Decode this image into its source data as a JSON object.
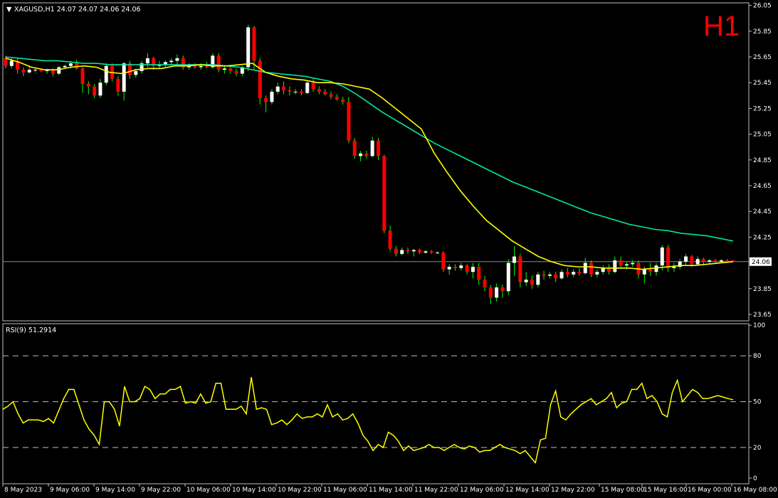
{
  "header": {
    "symbol_line": "XAGUSD,H1  24.07 24.07 24.06 24.06",
    "timeframe_label": "H1",
    "timeframe_color": "#ff0000"
  },
  "chart_data": [
    {
      "type": "candlestick",
      "symbol": "XAGUSD",
      "timeframe": "H1",
      "ohlc_last": {
        "open": 24.07,
        "high": 24.07,
        "low": 24.06,
        "close": 24.06
      },
      "current_price": 24.06,
      "ylim": [
        23.6,
        26.07
      ],
      "yticks": [
        26.05,
        25.85,
        25.65,
        25.45,
        25.25,
        25.05,
        24.85,
        24.65,
        24.45,
        24.25,
        24.06,
        23.85,
        23.65
      ],
      "xtick_labels": [
        "8 May 2023",
        "9 May 06:00",
        "9 May 14:00",
        "9 May 22:00",
        "10 May 06:00",
        "10 May 14:00",
        "10 May 22:00",
        "11 May 06:00",
        "11 May 14:00",
        "11 May 22:00",
        "12 May 06:00",
        "12 May 14:00",
        "12 May 22:00",
        "15 May 08:00",
        "15 May 16:00",
        "16 May 00:00",
        "16 May 08:00"
      ],
      "bull_color": "#ffffff",
      "bear_color": "#ff0000",
      "wick_color": "#00ff00",
      "candles": [
        [
          25.64,
          25.66,
          25.56,
          25.58
        ],
        [
          25.58,
          25.64,
          25.56,
          25.62
        ],
        [
          25.62,
          25.64,
          25.52,
          25.55
        ],
        [
          25.55,
          25.57,
          25.5,
          25.53
        ],
        [
          25.53,
          25.58,
          25.52,
          25.55
        ],
        [
          25.55,
          25.56,
          25.53,
          25.55
        ],
        [
          25.55,
          25.56,
          25.53,
          25.54
        ],
        [
          25.54,
          25.56,
          25.52,
          25.55
        ],
        [
          25.55,
          25.56,
          25.5,
          25.52
        ],
        [
          25.52,
          25.58,
          25.51,
          25.57
        ],
        [
          25.57,
          25.59,
          25.56,
          25.58
        ],
        [
          25.58,
          25.62,
          25.56,
          25.6
        ],
        [
          25.6,
          25.63,
          25.55,
          25.56
        ],
        [
          25.56,
          25.57,
          25.37,
          25.44
        ],
        [
          25.44,
          25.46,
          25.36,
          25.42
        ],
        [
          25.42,
          25.44,
          25.33,
          25.35
        ],
        [
          25.35,
          25.48,
          25.33,
          25.45
        ],
        [
          25.45,
          25.6,
          25.43,
          25.58
        ],
        [
          25.58,
          25.6,
          25.46,
          25.48
        ],
        [
          25.48,
          25.5,
          25.35,
          25.38
        ],
        [
          25.38,
          25.61,
          25.31,
          25.6
        ],
        [
          25.6,
          25.62,
          25.48,
          25.51
        ],
        [
          25.51,
          25.56,
          25.49,
          25.54
        ],
        [
          25.54,
          25.62,
          25.52,
          25.6
        ],
        [
          25.6,
          25.68,
          25.57,
          25.64
        ],
        [
          25.64,
          25.65,
          25.55,
          25.58
        ],
        [
          25.58,
          25.62,
          25.56,
          25.59
        ],
        [
          25.59,
          25.62,
          25.57,
          25.61
        ],
        [
          25.61,
          25.64,
          25.58,
          25.62
        ],
        [
          25.62,
          25.67,
          25.58,
          25.64
        ],
        [
          25.64,
          25.66,
          25.55,
          25.57
        ],
        [
          25.57,
          25.6,
          25.55,
          25.58
        ],
        [
          25.58,
          25.6,
          25.56,
          25.57
        ],
        [
          25.57,
          25.6,
          25.55,
          25.58
        ],
        [
          25.58,
          25.61,
          25.56,
          25.57
        ],
        [
          25.57,
          25.68,
          25.56,
          25.66
        ],
        [
          25.66,
          25.68,
          25.53,
          25.55
        ],
        [
          25.55,
          25.58,
          25.52,
          25.56
        ],
        [
          25.56,
          25.58,
          25.52,
          25.54
        ],
        [
          25.54,
          25.56,
          25.5,
          25.52
        ],
        [
          25.52,
          25.58,
          25.5,
          25.57
        ],
        [
          25.57,
          25.9,
          25.54,
          25.88
        ],
        [
          25.88,
          25.89,
          25.55,
          25.62
        ],
        [
          25.62,
          25.64,
          25.28,
          25.33
        ],
        [
          25.33,
          25.35,
          25.22,
          25.3
        ],
        [
          25.3,
          25.4,
          25.28,
          25.38
        ],
        [
          25.38,
          25.45,
          25.36,
          25.42
        ],
        [
          25.42,
          25.46,
          25.36,
          25.39
        ],
        [
          25.39,
          25.42,
          25.35,
          25.38
        ],
        [
          25.38,
          25.4,
          25.36,
          25.38
        ],
        [
          25.38,
          25.4,
          25.35,
          25.37
        ],
        [
          25.37,
          25.47,
          25.36,
          25.45
        ],
        [
          25.45,
          25.48,
          25.38,
          25.4
        ],
        [
          25.4,
          25.42,
          25.36,
          25.38
        ],
        [
          25.38,
          25.4,
          25.35,
          25.36
        ],
        [
          25.36,
          25.38,
          25.32,
          25.34
        ],
        [
          25.34,
          25.36,
          25.31,
          25.32
        ],
        [
          25.32,
          25.34,
          25.28,
          25.3
        ],
        [
          25.3,
          25.34,
          24.98,
          25.0
        ],
        [
          25.0,
          25.02,
          24.86,
          24.88
        ],
        [
          24.88,
          24.92,
          24.84,
          24.9
        ],
        [
          24.9,
          24.92,
          24.86,
          24.88
        ],
        [
          24.88,
          25.03,
          24.87,
          25.0
        ],
        [
          25.0,
          25.02,
          24.85,
          24.88
        ],
        [
          24.88,
          24.89,
          24.28,
          24.3
        ],
        [
          24.3,
          24.34,
          24.14,
          24.16
        ],
        [
          24.16,
          24.18,
          24.1,
          24.12
        ],
        [
          24.12,
          24.17,
          24.11,
          24.15
        ],
        [
          24.15,
          24.17,
          24.12,
          24.14
        ],
        [
          24.14,
          24.16,
          24.1,
          24.15
        ],
        [
          24.15,
          24.16,
          24.12,
          24.13
        ],
        [
          24.13,
          24.15,
          24.12,
          24.14
        ],
        [
          24.14,
          24.15,
          24.12,
          24.13
        ],
        [
          24.13,
          24.14,
          24.12,
          24.13
        ],
        [
          24.13,
          24.14,
          23.98,
          24.0
        ],
        [
          24.0,
          24.04,
          23.96,
          24.02
        ],
        [
          24.02,
          24.04,
          23.99,
          24.01
        ],
        [
          24.01,
          24.05,
          23.99,
          24.03
        ],
        [
          24.03,
          24.04,
          23.96,
          23.98
        ],
        [
          23.98,
          24.05,
          23.93,
          24.02
        ],
        [
          24.02,
          24.05,
          23.88,
          23.92
        ],
        [
          23.92,
          23.95,
          23.83,
          23.86
        ],
        [
          23.86,
          23.88,
          23.73,
          23.78
        ],
        [
          23.78,
          23.89,
          23.75,
          23.86
        ],
        [
          23.86,
          23.88,
          23.78,
          23.83
        ],
        [
          23.83,
          24.08,
          23.8,
          24.05
        ],
        [
          24.05,
          24.18,
          23.95,
          24.1
        ],
        [
          24.1,
          24.12,
          23.86,
          23.9
        ],
        [
          23.9,
          23.98,
          23.87,
          23.92
        ],
        [
          23.92,
          23.95,
          23.85,
          23.88
        ],
        [
          23.88,
          23.98,
          23.86,
          23.96
        ],
        [
          23.96,
          23.99,
          23.92,
          23.95
        ],
        [
          23.95,
          23.98,
          23.93,
          23.96
        ],
        [
          23.96,
          23.98,
          23.9,
          23.93
        ],
        [
          23.93,
          24.0,
          23.92,
          23.98
        ],
        [
          23.98,
          24.01,
          23.94,
          23.96
        ],
        [
          23.96,
          24.0,
          23.94,
          23.98
        ],
        [
          23.98,
          24.01,
          23.95,
          23.97
        ],
        [
          23.97,
          24.09,
          23.96,
          24.05
        ],
        [
          24.05,
          24.07,
          23.94,
          23.96
        ],
        [
          23.96,
          24.0,
          23.94,
          23.98
        ],
        [
          23.98,
          24.03,
          23.96,
          24.01
        ],
        [
          24.01,
          24.04,
          23.96,
          23.98
        ],
        [
          23.98,
          24.1,
          23.97,
          24.07
        ],
        [
          24.07,
          24.1,
          24.01,
          24.03
        ],
        [
          24.03,
          24.06,
          24.0,
          24.04
        ],
        [
          24.04,
          24.07,
          24.02,
          24.05
        ],
        [
          24.05,
          24.07,
          23.93,
          23.96
        ],
        [
          23.96,
          24.02,
          23.89,
          24.0
        ],
        [
          24.0,
          24.05,
          23.95,
          23.98
        ],
        [
          23.98,
          24.05,
          23.95,
          24.03
        ],
        [
          24.03,
          24.19,
          23.99,
          24.17
        ],
        [
          24.17,
          24.19,
          23.98,
          24.01
        ],
        [
          24.01,
          24.05,
          23.98,
          24.02
        ],
        [
          24.02,
          24.08,
          24.0,
          24.06
        ],
        [
          24.06,
          24.12,
          24.03,
          24.1
        ],
        [
          24.1,
          24.11,
          24.02,
          24.04
        ],
        [
          24.04,
          24.1,
          24.03,
          24.08
        ],
        [
          24.08,
          24.09,
          24.04,
          24.06
        ],
        [
          24.06,
          24.08,
          24.04,
          24.07
        ],
        [
          24.07,
          24.08,
          24.05,
          24.06
        ],
        [
          24.06,
          24.08,
          24.05,
          24.07
        ],
        [
          24.07,
          24.08,
          24.05,
          24.06
        ],
        [
          24.07,
          24.07,
          24.06,
          24.06
        ]
      ],
      "ma_fast_color": "#ffff00",
      "ma_slow_color": "#00e5a0",
      "ma_fast": [
        25.64,
        25.61,
        25.57,
        25.55,
        25.55,
        25.57,
        25.58,
        25.57,
        25.53,
        25.52,
        25.55,
        25.56,
        25.56,
        25.58,
        25.58,
        25.59,
        25.58,
        25.58,
        25.59,
        25.6,
        25.53,
        25.5,
        25.48,
        25.47,
        25.45,
        25.45,
        25.44,
        25.42,
        25.4,
        25.33,
        25.25,
        25.17,
        25.09,
        24.9,
        24.75,
        24.61,
        24.49,
        24.38,
        24.3,
        24.22,
        24.16,
        24.1,
        24.06,
        24.03,
        24.02,
        24.02,
        24.01,
        24.01,
        24.01,
        24.0,
        24.01,
        24.02,
        24.03,
        24.03,
        24.04,
        24.05,
        24.06
      ],
      "ma_slow": [
        25.65,
        25.64,
        25.63,
        25.62,
        25.62,
        25.61,
        25.6,
        25.6,
        25.59,
        25.59,
        25.59,
        25.59,
        25.59,
        25.59,
        25.59,
        25.59,
        25.59,
        25.58,
        25.57,
        25.55,
        25.53,
        25.52,
        25.51,
        25.5,
        25.48,
        25.46,
        25.42,
        25.36,
        25.29,
        25.22,
        25.16,
        25.1,
        25.04,
        24.98,
        24.93,
        24.88,
        24.83,
        24.78,
        24.73,
        24.68,
        24.64,
        24.6,
        24.56,
        24.52,
        24.48,
        24.44,
        24.41,
        24.38,
        24.35,
        24.33,
        24.31,
        24.3,
        24.28,
        24.27,
        24.26,
        24.24,
        24.22
      ]
    },
    {
      "type": "line",
      "title": "RSI(9) 51.2914",
      "indicator": "RSI",
      "period": 9,
      "last_value": 51.2914,
      "ylim": [
        0,
        100
      ],
      "yticks": [
        100,
        80,
        50,
        20,
        0
      ],
      "levels": [
        80,
        50,
        20
      ],
      "line_color": "#ffff00",
      "values": [
        45,
        47,
        50,
        42,
        36,
        38,
        38,
        38,
        37,
        39,
        36,
        44,
        52,
        58,
        58,
        48,
        38,
        32,
        28,
        22,
        50,
        50,
        45,
        34,
        60,
        50,
        50,
        52,
        60,
        58,
        52,
        55,
        55,
        58,
        58,
        60,
        49,
        50,
        49,
        55,
        49,
        50,
        62,
        62,
        45,
        45,
        45,
        47,
        42,
        66,
        45,
        46,
        45,
        35,
        36,
        38,
        35,
        38,
        42,
        39,
        40,
        40,
        42,
        40,
        48,
        40,
        42,
        38,
        39,
        42,
        36,
        28,
        24,
        18,
        22,
        20,
        30,
        28,
        24,
        18,
        21,
        18,
        19,
        20,
        22,
        20,
        20,
        18,
        20,
        22,
        20,
        19,
        21,
        20,
        17,
        18,
        18,
        20,
        22,
        20,
        19,
        18,
        16,
        18,
        14,
        10,
        25,
        26,
        48,
        57,
        40,
        38,
        42,
        45,
        48,
        50,
        52,
        48,
        50,
        52,
        56,
        46,
        49,
        50,
        58,
        58,
        62,
        52,
        54,
        50,
        42,
        40,
        56,
        64,
        50,
        54,
        58,
        56,
        52,
        52,
        53,
        54,
        53,
        52,
        51.29
      ]
    }
  ]
}
